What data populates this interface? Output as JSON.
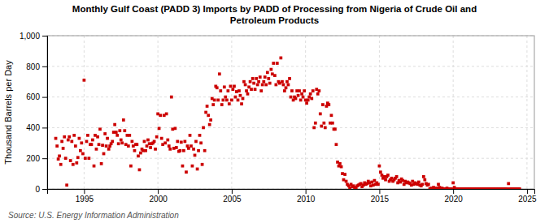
{
  "chart_data": {
    "type": "scatter",
    "title": "Monthly Gulf Coast (PADD 3) Imports by PADD of Processing from Nigeria of Crude Oil and\nPetroleum Products",
    "ylabel": "Thousand Barrels per Day",
    "source": "Source: U.S. Energy Information Administration",
    "color": "#cc0000",
    "marker": "square",
    "grid": true,
    "xlim": [
      1992.5,
      2025.5
    ],
    "xticks": [
      1995,
      2000,
      2005,
      2010,
      2015,
      2020,
      2025
    ],
    "ylim": [
      0,
      1000
    ],
    "yticks": [
      0,
      200,
      400,
      600,
      800,
      {
        "value": 1000,
        "label": "1,000"
      }
    ],
    "x": [
      1993.08,
      1993.17,
      1993.25,
      1993.33,
      1993.42,
      1993.5,
      1993.58,
      1993.67,
      1993.75,
      1993.83,
      1993.92,
      1994.0,
      1994.08,
      1994.17,
      1994.25,
      1994.33,
      1994.42,
      1994.5,
      1994.58,
      1994.67,
      1994.75,
      1994.83,
      1994.92,
      1995.0,
      1995.08,
      1995.17,
      1995.25,
      1995.33,
      1995.42,
      1995.5,
      1995.58,
      1995.67,
      1995.75,
      1995.83,
      1995.92,
      1996.0,
      1996.08,
      1996.17,
      1996.25,
      1996.33,
      1996.42,
      1996.5,
      1996.58,
      1996.67,
      1996.75,
      1996.83,
      1996.92,
      1997.0,
      1997.08,
      1997.17,
      1997.25,
      1997.33,
      1997.42,
      1997.5,
      1997.58,
      1997.67,
      1997.75,
      1997.83,
      1997.92,
      1998.0,
      1998.08,
      1998.17,
      1998.25,
      1998.33,
      1998.42,
      1998.5,
      1998.58,
      1998.67,
      1998.75,
      1998.83,
      1998.92,
      1999.0,
      1999.08,
      1999.17,
      1999.25,
      1999.33,
      1999.42,
      1999.5,
      1999.58,
      1999.67,
      1999.75,
      1999.83,
      1999.92,
      2000.0,
      2000.08,
      2000.17,
      2000.25,
      2000.33,
      2000.42,
      2000.5,
      2000.58,
      2000.67,
      2000.75,
      2000.83,
      2000.92,
      2001.0,
      2001.08,
      2001.17,
      2001.25,
      2001.33,
      2001.42,
      2001.5,
      2001.58,
      2001.67,
      2001.75,
      2001.83,
      2001.92,
      2002.0,
      2002.08,
      2002.17,
      2002.25,
      2002.33,
      2002.42,
      2002.5,
      2002.58,
      2002.67,
      2002.75,
      2002.83,
      2002.92,
      2003.0,
      2003.08,
      2003.17,
      2003.25,
      2003.33,
      2003.42,
      2003.5,
      2003.58,
      2003.67,
      2003.75,
      2003.83,
      2003.92,
      2004.0,
      2004.08,
      2004.17,
      2004.25,
      2004.33,
      2004.42,
      2004.5,
      2004.58,
      2004.67,
      2004.75,
      2004.83,
      2004.92,
      2005.0,
      2005.08,
      2005.17,
      2005.25,
      2005.33,
      2005.42,
      2005.5,
      2005.58,
      2005.67,
      2005.75,
      2005.83,
      2005.92,
      2006.0,
      2006.08,
      2006.17,
      2006.25,
      2006.33,
      2006.42,
      2006.5,
      2006.58,
      2006.67,
      2006.75,
      2006.83,
      2006.92,
      2007.0,
      2007.08,
      2007.17,
      2007.25,
      2007.33,
      2007.42,
      2007.5,
      2007.58,
      2007.67,
      2007.75,
      2007.83,
      2007.92,
      2008.0,
      2008.08,
      2008.17,
      2008.25,
      2008.33,
      2008.42,
      2008.5,
      2008.58,
      2008.67,
      2008.75,
      2008.83,
      2008.92,
      2009.0,
      2009.08,
      2009.17,
      2009.25,
      2009.33,
      2009.42,
      2009.5,
      2009.58,
      2009.67,
      2009.75,
      2009.83,
      2009.92,
      2010.0,
      2010.08,
      2010.17,
      2010.25,
      2010.33,
      2010.42,
      2010.5,
      2010.58,
      2010.67,
      2010.75,
      2010.83,
      2010.92,
      2011.0,
      2011.08,
      2011.17,
      2011.25,
      2011.33,
      2011.42,
      2011.5,
      2011.58,
      2011.67,
      2011.75,
      2011.83,
      2011.92,
      2012.0,
      2012.08,
      2012.17,
      2012.25,
      2012.33,
      2012.42,
      2012.5,
      2012.58,
      2012.67,
      2012.75,
      2012.83,
      2012.92,
      2013.0,
      2013.08,
      2013.17,
      2013.25,
      2013.33,
      2013.42,
      2013.5,
      2013.58,
      2013.67,
      2013.75,
      2013.83,
      2013.92,
      2014.0,
      2014.08,
      2014.17,
      2014.25,
      2014.33,
      2014.42,
      2014.5,
      2014.58,
      2014.67,
      2014.75,
      2014.83,
      2014.92,
      2015.0,
      2015.08,
      2015.17,
      2015.25,
      2015.33,
      2015.42,
      2015.5,
      2015.58,
      2015.67,
      2015.75,
      2015.83,
      2015.92,
      2016.0,
      2016.08,
      2016.17,
      2016.25,
      2016.33,
      2016.42,
      2016.5,
      2016.58,
      2016.67,
      2016.75,
      2016.83,
      2016.92,
      2017.0,
      2017.08,
      2017.17,
      2017.25,
      2017.33,
      2017.42,
      2017.5,
      2017.58,
      2017.67,
      2017.75,
      2017.83,
      2017.92,
      2018.0,
      2018.08,
      2018.17,
      2018.25,
      2018.33,
      2018.42,
      2018.5,
      2018.58,
      2018.67,
      2018.75,
      2018.83,
      2018.92,
      2019.0,
      2019.08,
      2019.17,
      2019.25,
      2019.33,
      2019.42,
      2019.5,
      2019.58,
      2019.67,
      2019.75,
      2019.83,
      2019.92,
      2020.0,
      2020.08,
      2020.17,
      2020.25,
      2020.33,
      2020.42,
      2020.5,
      2020.58,
      2020.67,
      2020.75,
      2020.83,
      2020.92,
      2021.0,
      2021.08,
      2021.17,
      2021.25,
      2021.33,
      2021.42,
      2021.5,
      2021.58,
      2021.67,
      2021.75,
      2021.83,
      2021.92,
      2022.0,
      2022.08,
      2022.17,
      2022.25,
      2022.33,
      2022.42,
      2022.5,
      2022.58,
      2022.67,
      2022.75,
      2022.83,
      2022.92,
      2023.0,
      2023.08,
      2023.17,
      2023.25,
      2023.33,
      2023.42,
      2023.5,
      2023.58,
      2023.67,
      2023.75,
      2023.83,
      2023.92,
      2024.0,
      2024.08,
      2024.17,
      2024.25,
      2024.33,
      2024.42,
      2024.5
    ],
    "values": [
      330,
      280,
      195,
      215,
      160,
      310,
      265,
      340,
      200,
      25,
      320,
      340,
      185,
      310,
      160,
      350,
      280,
      170,
      205,
      330,
      250,
      300,
      230,
      710,
      200,
      310,
      350,
      200,
      290,
      290,
      320,
      150,
      350,
      260,
      340,
      290,
      390,
      165,
      285,
      230,
      360,
      280,
      330,
      260,
      280,
      295,
      310,
      370,
      420,
      370,
      350,
      295,
      380,
      320,
      300,
      450,
      380,
      290,
      350,
      280,
      350,
      150,
      310,
      280,
      250,
      290,
      290,
      215,
      125,
      235,
      260,
      250,
      310,
      250,
      280,
      320,
      295,
      270,
      295,
      300,
      310,
      260,
      340,
      490,
      395,
      480,
      330,
      290,
      480,
      300,
      490,
      320,
      280,
      260,
      600,
      390,
      265,
      395,
      270,
      310,
      245,
      250,
      305,
      150,
      250,
      310,
      110,
      280,
      265,
      350,
      280,
      150,
      260,
      220,
      310,
      130,
      250,
      350,
      300,
      160,
      400,
      250,
      500,
      540,
      480,
      420,
      450,
      590,
      550,
      580,
      670,
      660,
      580,
      750,
      640,
      550,
      580,
      665,
      600,
      580,
      640,
      555,
      670,
      580,
      650,
      670,
      600,
      635,
      580,
      640,
      610,
      555,
      590,
      700,
      680,
      640,
      620,
      665,
      700,
      650,
      720,
      690,
      650,
      720,
      680,
      700,
      730,
      640,
      680,
      700,
      730,
      680,
      760,
      720,
      690,
      780,
      750,
      820,
      740,
      680,
      820,
      700,
      690,
      855,
      700,
      680,
      640,
      660,
      700,
      680,
      720,
      600,
      640,
      580,
      600,
      590,
      640,
      610,
      640,
      580,
      620,
      600,
      640,
      580,
      560,
      580,
      600,
      620,
      590,
      640,
      400,
      430,
      650,
      620,
      640,
      490,
      410,
      550,
      430,
      400,
      540,
      560,
      550,
      430,
      480,
      430,
      390,
      390,
      290,
      175,
      150,
      165,
      145,
      100,
      60,
      95,
      50,
      30,
      20,
      5,
      30,
      15,
      20,
      10,
      5,
      20,
      25,
      30,
      35,
      15,
      25,
      40,
      30,
      35,
      50,
      40,
      20,
      45,
      25,
      55,
      30,
      40,
      30,
      150,
      110,
      90,
      70,
      80,
      60,
      80,
      90,
      50,
      60,
      70,
      50,
      60,
      70,
      80,
      40,
      55,
      45,
      65,
      55,
      30,
      50,
      40,
      45,
      40,
      35,
      25,
      50,
      30,
      40,
      35,
      30,
      45,
      25,
      20,
      30,
      80,
      60,
      35,
      25,
      30,
      0,
      5,
      0,
      10,
      5,
      0,
      5,
      30,
      10,
      0,
      5,
      0,
      0,
      0,
      5,
      0,
      0,
      0,
      0,
      40,
      10,
      0,
      0,
      0,
      0,
      0,
      0,
      0,
      0,
      0,
      0,
      0,
      0,
      0,
      0,
      0,
      0,
      0,
      0,
      0,
      0,
      0,
      0,
      0,
      0,
      0,
      0,
      0,
      0,
      0,
      0,
      0,
      0,
      0,
      0,
      0,
      0,
      0,
      0,
      0,
      0,
      0,
      0,
      0,
      35,
      0,
      0,
      0,
      0,
      0,
      0,
      0,
      0,
      0
    ]
  }
}
